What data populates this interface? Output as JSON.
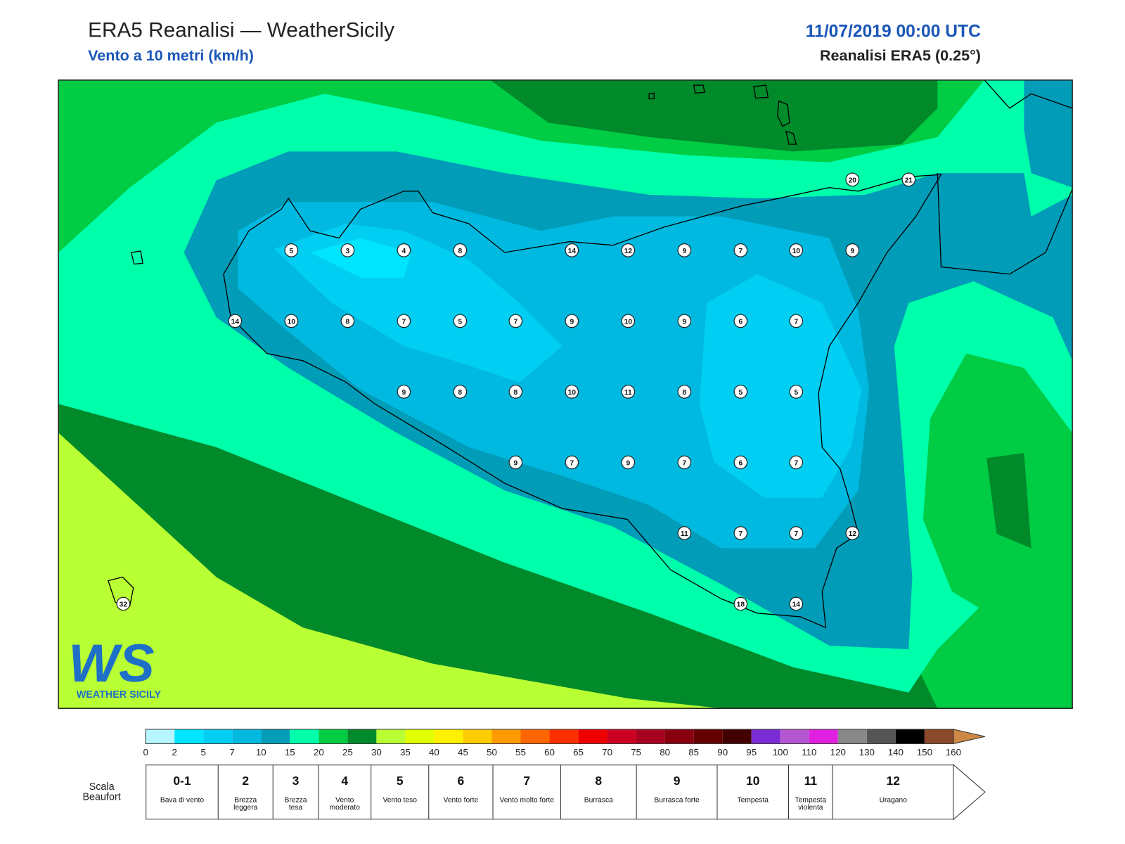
{
  "header": {
    "title": "ERA5 Reanalisi — WeatherSicily",
    "subtitle": "Vento a 10 metri (km/h)",
    "date": "11/07/2019 00:00 UTC",
    "model": "Reanalisi ERA5 (0.25°)"
  },
  "stations": {
    "values": [
      5,
      3,
      4,
      8,
      14,
      12,
      9,
      7,
      10,
      9,
      14,
      10,
      8,
      7,
      5,
      7,
      9,
      10,
      9,
      6,
      7,
      9,
      8,
      8,
      10,
      11,
      8,
      5,
      5,
      9,
      7,
      9,
      7,
      6,
      7,
      11,
      7,
      7,
      12,
      18,
      14,
      20,
      21,
      32
    ]
  },
  "colorbar": {
    "ticks": [
      0,
      2,
      5,
      7,
      10,
      15,
      20,
      25,
      30,
      35,
      40,
      45,
      50,
      55,
      60,
      65,
      70,
      75,
      80,
      85,
      90,
      95,
      100,
      110,
      120,
      130,
      140,
      150,
      160
    ],
    "colors": [
      "#b5f6ff",
      "#00e5ff",
      "#00cef2",
      "#00b9e0",
      "#009cb8",
      "#00ffaa",
      "#00cc44",
      "#008a2a",
      "#b8ff33",
      "#e0ff00",
      "#fff000",
      "#ffcc00",
      "#ff9a00",
      "#ff6600",
      "#ff3000",
      "#ee0000",
      "#cc0022",
      "#a80020",
      "#880010",
      "#660000",
      "#420000",
      "#7a2bd4",
      "#b455d2",
      "#e020e0",
      "#888888",
      "#555555",
      "#000000",
      "#8b4a2a",
      "#cc8844"
    ]
  },
  "beaufort": {
    "label": "Scala Beaufort",
    "forces": [
      {
        "force": "0-1",
        "name": "Bava di vento"
      },
      {
        "force": 2,
        "name": "Brezza leggera"
      },
      {
        "force": 3,
        "name": "Brezza tesa"
      },
      {
        "force": 4,
        "name": "Vento moderato"
      },
      {
        "force": 5,
        "name": "Vento teso"
      },
      {
        "force": 6,
        "name": "Vento forte"
      },
      {
        "force": 7,
        "name": "Vento molto forte"
      },
      {
        "force": 8,
        "name": "Burrasca"
      },
      {
        "force": 9,
        "name": "Burrasca forte"
      },
      {
        "force": 10,
        "name": "Tempesta"
      },
      {
        "force": 11,
        "name": "Tempesta violenta"
      },
      {
        "force": 12,
        "name": "Uragano"
      }
    ]
  },
  "logo": {
    "mark": "WS",
    "text": "WEATHER SICILY"
  }
}
